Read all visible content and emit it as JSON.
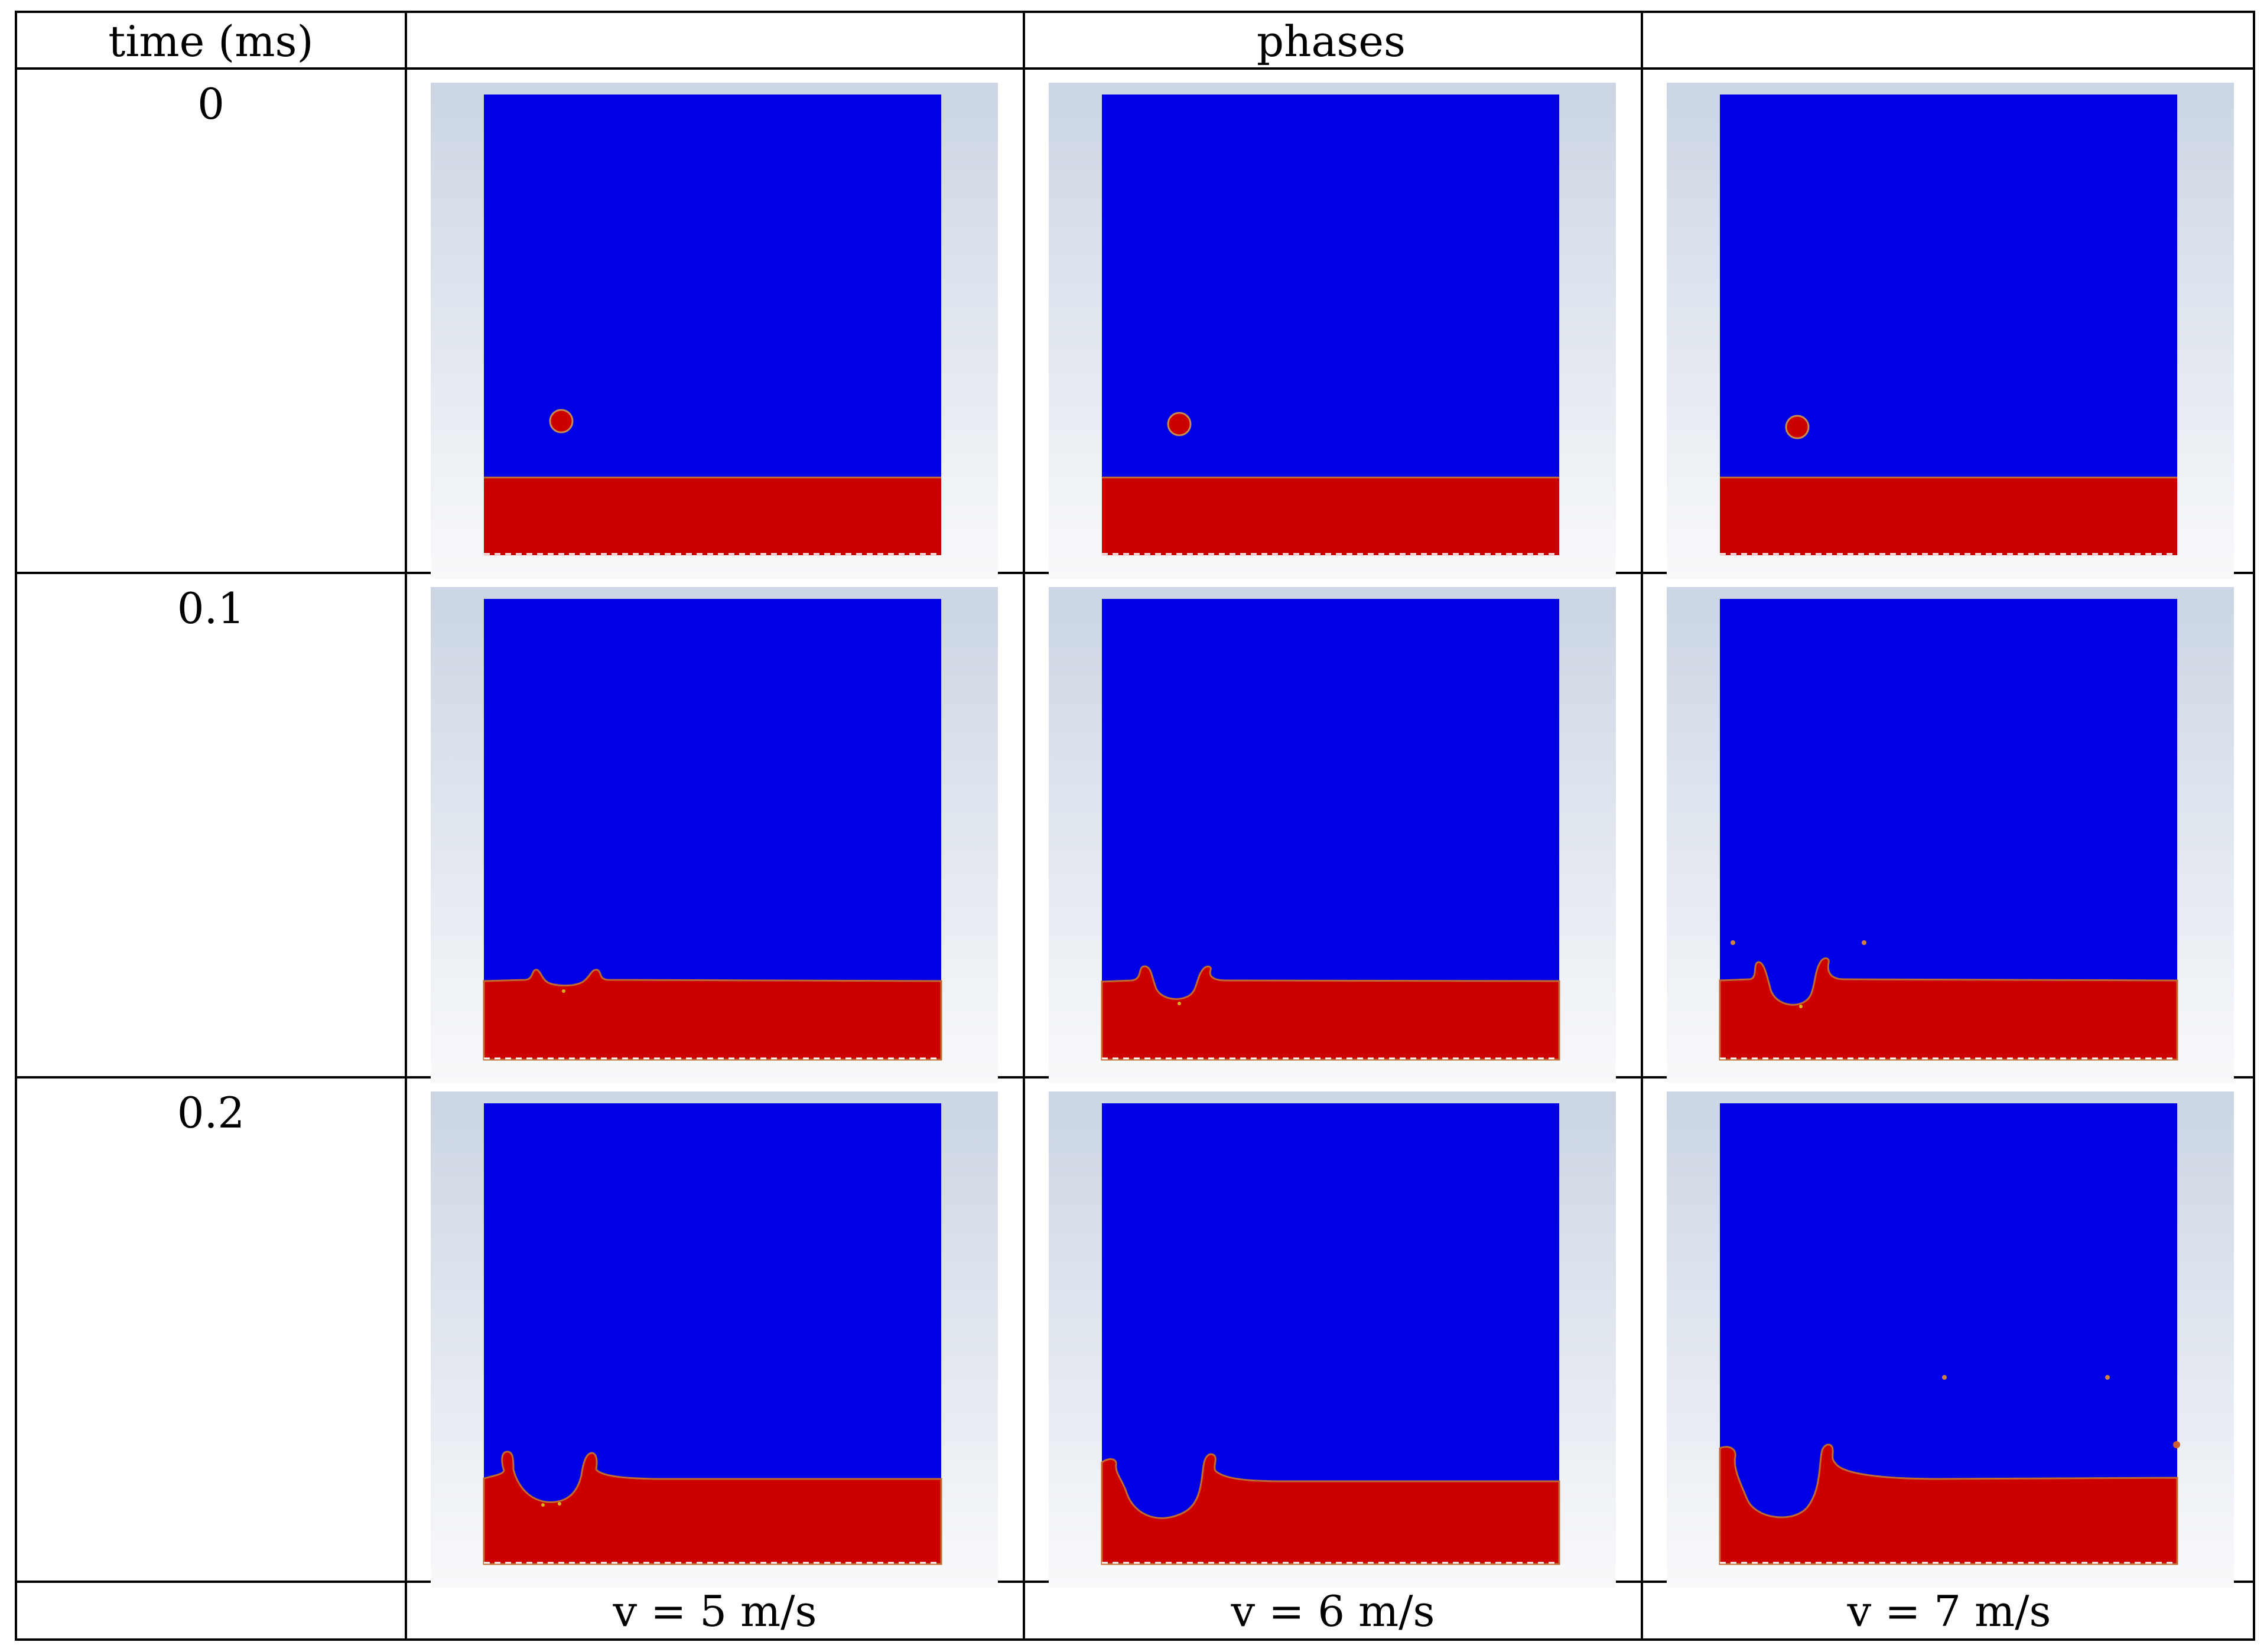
{
  "header": {
    "time_label": "time (ms)",
    "phases_label": "phases"
  },
  "rows": [
    {
      "time": "0"
    },
    {
      "time": "0.1"
    },
    {
      "time": "0.2"
    }
  ],
  "columns": [
    {
      "velocity": "v = 5 m/s"
    },
    {
      "velocity": "v = 6 m/s"
    },
    {
      "velocity": "v = 7 m/s"
    }
  ],
  "colors": {
    "primary_phase": "#0000e4",
    "secondary_phase": "#cc0000",
    "background_top": "#cbd5e3",
    "background_bottom": "#f8f9fb"
  }
}
